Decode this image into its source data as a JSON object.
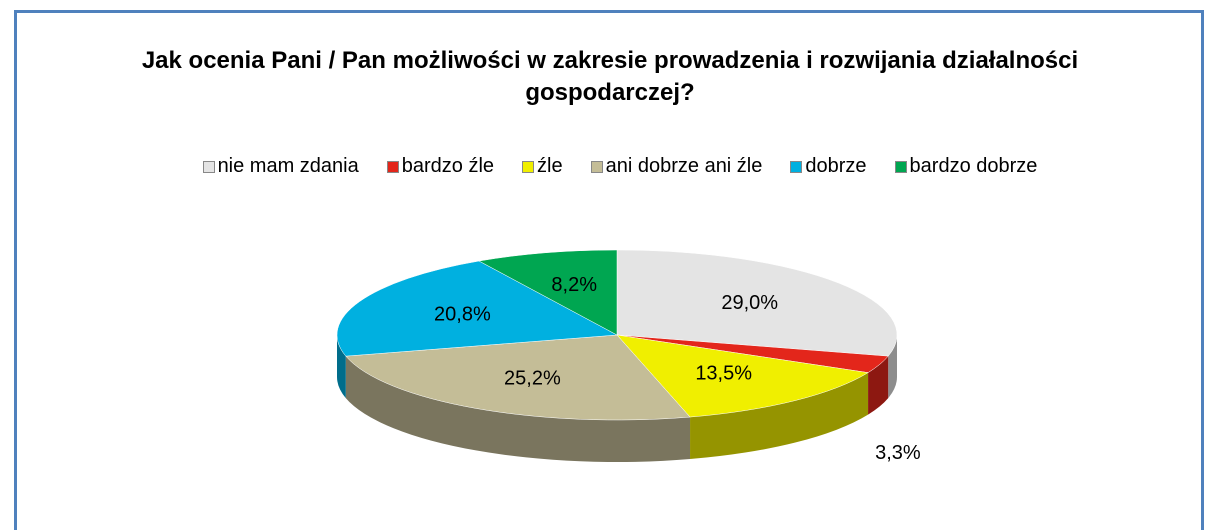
{
  "chart_data": {
    "type": "pie",
    "title": "Jak ocenia Pani / Pan możliwości w zakresie prowadzenia i rozwijania działalności gospodarczej?",
    "categories": [
      "nie mam zdania",
      "bardzo źle",
      "źle",
      "ani dobrze ani źle",
      "dobrze",
      "bardzo dobrze"
    ],
    "values": [
      29.0,
      3.3,
      13.5,
      25.2,
      20.8,
      8.2
    ],
    "value_labels": [
      "29,0%",
      "3,3%",
      "13,5%",
      "25,2%",
      "20,8%",
      "8,2%"
    ],
    "colors": [
      "#e4e4e4",
      "#e3261b",
      "#f0ef00",
      "#c4bd97",
      "#00b0e0",
      "#00a651"
    ],
    "legend": "top"
  }
}
